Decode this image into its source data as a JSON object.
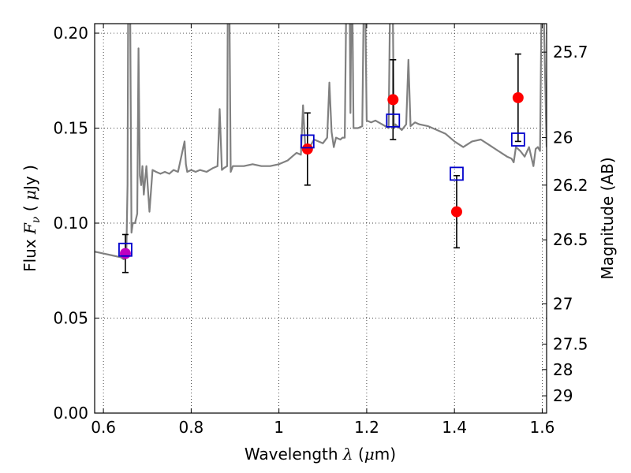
{
  "chart_data": {
    "type": "scatter",
    "title": "",
    "xlabel": "Wavelength",
    "xlabel_symbol": "λ",
    "xlabel_unit_open": " (",
    "xlabel_unit_mu": "μ",
    "xlabel_unit_rest": "m)",
    "ylabel_left": "Flux",
    "ylabel_left_symbol": "F",
    "ylabel_left_sub": "ν",
    "ylabel_left_unit_open": "( ",
    "ylabel_left_unit_mu": "μ",
    "ylabel_left_unit_rest": "Jy )",
    "ylabel_right": "Magnitude (AB)",
    "xlim": [
      0.58,
      1.61
    ],
    "ylim": [
      0.0,
      0.205
    ],
    "grid": true,
    "x_ticks": [
      0.6,
      0.8,
      1.0,
      1.2,
      1.4,
      1.6
    ],
    "x_tick_labels": [
      "0.6",
      "0.8",
      "1",
      "1.2",
      "1.4",
      "1.6"
    ],
    "y_ticks": [
      0.0,
      0.05,
      0.1,
      0.15,
      0.2
    ],
    "y_tick_labels": [
      "0.00",
      "0.05",
      "0.10",
      "0.15",
      "0.20"
    ],
    "right_ticks": [
      {
        "flux": 0.19,
        "label": "25.7"
      },
      {
        "flux": 0.145,
        "label": "26"
      },
      {
        "flux": 0.12,
        "label": "26.2"
      },
      {
        "flux": 0.0912,
        "label": "26.5"
      },
      {
        "flux": 0.0575,
        "label": "27"
      },
      {
        "flux": 0.0363,
        "label": "27.5"
      },
      {
        "flux": 0.0229,
        "label": "28"
      },
      {
        "flux": 0.0091,
        "label": "29"
      }
    ],
    "series": [
      {
        "kind": "model-spectrum",
        "color": "#808080",
        "x": [
          0.58,
          0.6,
          0.62,
          0.64,
          0.646,
          0.652,
          0.655,
          0.657,
          0.66,
          0.664,
          0.667,
          0.672,
          0.677,
          0.68,
          0.683,
          0.686,
          0.689,
          0.692,
          0.698,
          0.705,
          0.712,
          0.72,
          0.73,
          0.74,
          0.75,
          0.76,
          0.77,
          0.785,
          0.788,
          0.791,
          0.8,
          0.81,
          0.82,
          0.835,
          0.85,
          0.86,
          0.865,
          0.87,
          0.875,
          0.882,
          0.884,
          0.886,
          0.89,
          0.895,
          0.9,
          0.92,
          0.94,
          0.96,
          0.98,
          1.0,
          1.02,
          1.03,
          1.04,
          1.05,
          1.055,
          1.06,
          1.07,
          1.08,
          1.09,
          1.1,
          1.11,
          1.115,
          1.12,
          1.125,
          1.13,
          1.14,
          1.145,
          1.15,
          1.155,
          1.16,
          1.163,
          1.166,
          1.17,
          1.18,
          1.19,
          1.195,
          1.2,
          1.21,
          1.22,
          1.235,
          1.25,
          1.255,
          1.258,
          1.262,
          1.265,
          1.27,
          1.28,
          1.29,
          1.295,
          1.3,
          1.31,
          1.32,
          1.34,
          1.36,
          1.38,
          1.4,
          1.42,
          1.44,
          1.46,
          1.48,
          1.5,
          1.52,
          1.53,
          1.535,
          1.54,
          1.55,
          1.56,
          1.57,
          1.58,
          1.585,
          1.59,
          1.595,
          1.6,
          1.61
        ],
        "y": [
          0.085,
          0.084,
          0.083,
          0.082,
          0.081,
          0.082,
          0.12,
          0.25,
          0.25,
          0.095,
          0.1,
          0.1,
          0.105,
          0.192,
          0.125,
          0.12,
          0.13,
          0.115,
          0.13,
          0.106,
          0.128,
          0.127,
          0.126,
          0.127,
          0.126,
          0.128,
          0.127,
          0.143,
          0.131,
          0.127,
          0.128,
          0.127,
          0.128,
          0.127,
          0.129,
          0.13,
          0.16,
          0.128,
          0.129,
          0.13,
          0.25,
          0.25,
          0.127,
          0.13,
          0.13,
          0.13,
          0.131,
          0.13,
          0.13,
          0.131,
          0.133,
          0.135,
          0.137,
          0.136,
          0.162,
          0.14,
          0.14,
          0.144,
          0.143,
          0.142,
          0.145,
          0.174,
          0.148,
          0.14,
          0.145,
          0.144,
          0.145,
          0.145,
          0.25,
          0.25,
          0.158,
          0.25,
          0.15,
          0.15,
          0.151,
          0.25,
          0.154,
          0.153,
          0.154,
          0.152,
          0.15,
          0.25,
          0.25,
          0.15,
          0.152,
          0.151,
          0.149,
          0.152,
          0.186,
          0.151,
          0.153,
          0.152,
          0.151,
          0.149,
          0.147,
          0.143,
          0.14,
          0.143,
          0.144,
          0.141,
          0.138,
          0.135,
          0.134,
          0.132,
          0.14,
          0.138,
          0.135,
          0.14,
          0.13,
          0.139,
          0.14,
          0.138,
          0.25,
          0.14
        ]
      },
      {
        "kind": "observed",
        "color": "#ff0000",
        "points": [
          {
            "x": 1.065,
            "y": 0.139,
            "err": 0.019
          },
          {
            "x": 1.26,
            "y": 0.165,
            "err": 0.021
          },
          {
            "x": 1.405,
            "y": 0.106,
            "err": 0.019
          },
          {
            "x": 1.545,
            "y": 0.166,
            "err": 0.023
          }
        ]
      },
      {
        "kind": "observed-optical",
        "color": "#c000c0",
        "points": [
          {
            "x": 0.65,
            "y": 0.084,
            "err": 0.01
          }
        ]
      },
      {
        "kind": "model-photometry",
        "color": "#0000cc",
        "points": [
          {
            "x": 0.65,
            "y": 0.086
          },
          {
            "x": 1.065,
            "y": 0.143
          },
          {
            "x": 1.26,
            "y": 0.154
          },
          {
            "x": 1.405,
            "y": 0.126
          },
          {
            "x": 1.545,
            "y": 0.144
          }
        ]
      }
    ]
  }
}
